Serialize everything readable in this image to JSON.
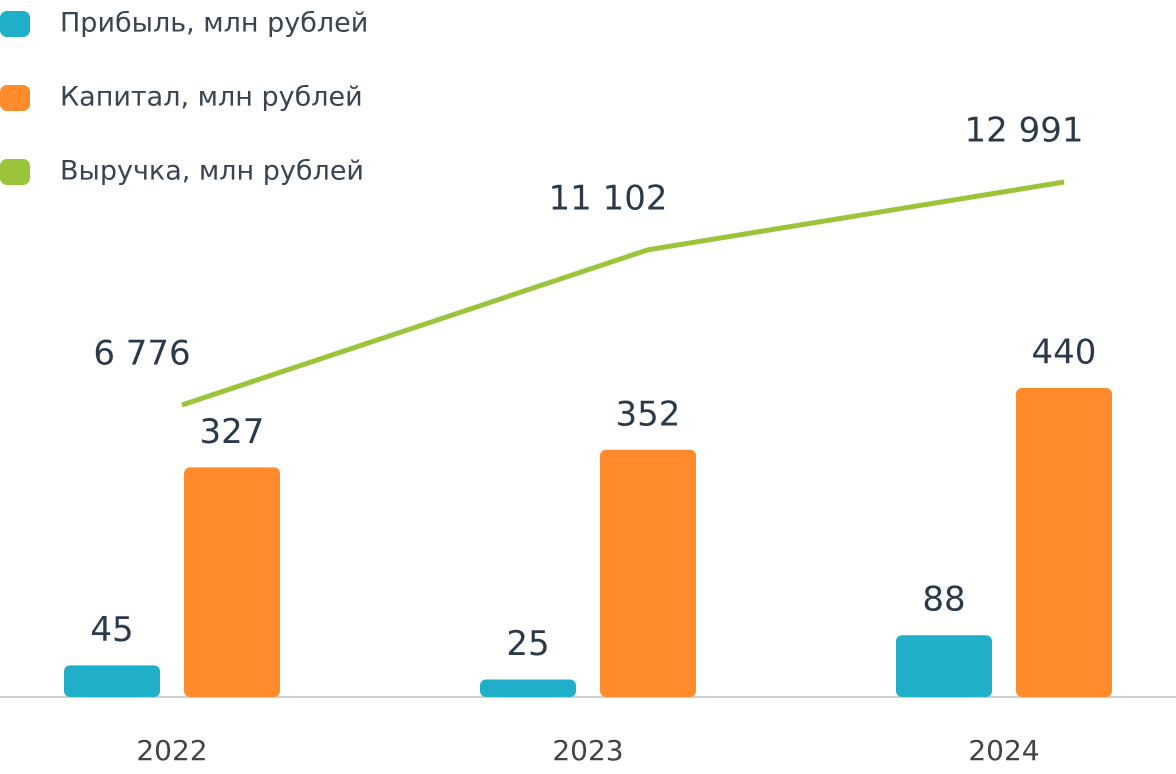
{
  "chart_data": {
    "type": "bar",
    "categories": [
      "2022",
      "2023",
      "2024"
    ],
    "series": [
      {
        "name": "Прибыль, млн рублей",
        "type": "bar",
        "color": "#20afc8",
        "values": [
          45,
          25,
          88
        ]
      },
      {
        "name": "Капитал, млн рублей",
        "type": "bar",
        "color": "#ff8b2c",
        "values": [
          327,
          352,
          440
        ]
      },
      {
        "name": "Выручка, млн рублей",
        "type": "line",
        "color": "#9cc43a",
        "values": [
          6776,
          11102,
          12991
        ],
        "value_labels": [
          "6 776",
          "11 102",
          "12 991"
        ]
      }
    ]
  }
}
